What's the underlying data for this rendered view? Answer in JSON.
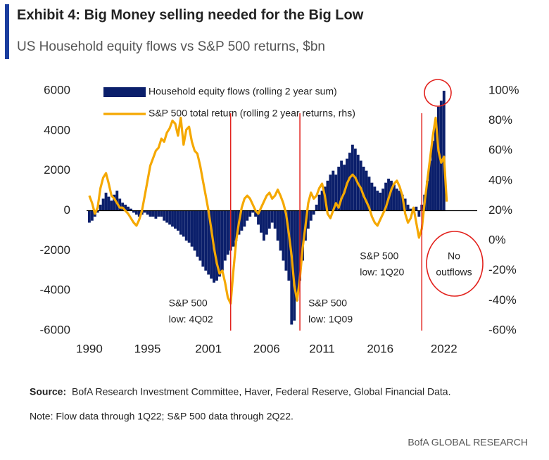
{
  "chart_data": {
    "type": "bar",
    "title": "Exhibit 4: Big Money selling needed for the Big Low",
    "subtitle": "US Household equity flows vs S&P 500 returns, $bn",
    "x": [
      1990,
      1990.25,
      1990.5,
      1990.75,
      1991,
      1991.25,
      1991.5,
      1991.75,
      1992,
      1992.25,
      1992.5,
      1992.75,
      1993,
      1993.25,
      1993.5,
      1993.75,
      1994,
      1994.25,
      1994.5,
      1994.75,
      1995,
      1995.25,
      1995.5,
      1995.75,
      1996,
      1996.25,
      1996.5,
      1996.75,
      1997,
      1997.25,
      1997.5,
      1997.75,
      1998,
      1998.25,
      1998.5,
      1998.75,
      1999,
      1999.25,
      1999.5,
      1999.75,
      2000,
      2000.25,
      2000.5,
      2000.75,
      2001,
      2001.25,
      2001.5,
      2001.75,
      2002,
      2002.25,
      2002.5,
      2002.75,
      2003,
      2003.25,
      2003.5,
      2003.75,
      2004,
      2004.25,
      2004.5,
      2004.75,
      2005,
      2005.25,
      2005.5,
      2005.75,
      2006,
      2006.25,
      2006.5,
      2006.75,
      2007,
      2007.25,
      2007.5,
      2007.75,
      2008,
      2008.25,
      2008.5,
      2008.75,
      2009,
      2009.25,
      2009.5,
      2009.75,
      2010,
      2010.25,
      2010.5,
      2010.75,
      2011,
      2011.25,
      2011.5,
      2011.75,
      2012,
      2012.25,
      2012.5,
      2012.75,
      2013,
      2013.25,
      2013.5,
      2013.75,
      2014,
      2014.25,
      2014.5,
      2014.75,
      2015,
      2015.25,
      2015.5,
      2015.75,
      2016,
      2016.25,
      2016.5,
      2016.75,
      2017,
      2017.25,
      2017.5,
      2017.75,
      2018,
      2018.25,
      2018.5,
      2018.75,
      2019,
      2019.25,
      2019.5,
      2019.75,
      2020,
      2020.25,
      2020.5,
      2020.75,
      2021,
      2021.25,
      2021.5,
      2021.75,
      2022,
      2022.25
    ],
    "series": [
      {
        "name": "Household equity flows (rolling 2 year sum)",
        "type": "bar",
        "color": "#0b1f6b",
        "values": [
          -600,
          -500,
          -300,
          -100,
          300,
          600,
          900,
          700,
          500,
          800,
          1000,
          600,
          400,
          300,
          200,
          100,
          -100,
          -200,
          -300,
          -200,
          -100,
          -200,
          -300,
          -300,
          -400,
          -300,
          -300,
          -500,
          -600,
          -700,
          -800,
          -900,
          -1000,
          -1200,
          -1300,
          -1500,
          -1600,
          -1800,
          -2000,
          -2300,
          -2500,
          -2800,
          -3000,
          -3200,
          -3400,
          -3600,
          -3500,
          -3300,
          -3000,
          -2500,
          -2200,
          -2000,
          -1800,
          -1500,
          -1200,
          -1000,
          -800,
          -500,
          -300,
          -100,
          -300,
          -700,
          -1100,
          -1500,
          -1200,
          -900,
          -600,
          -900,
          -1500,
          -2000,
          -2500,
          -3000,
          -3500,
          -5700,
          -5500,
          -4500,
          -3500,
          -2500,
          -1500,
          -900,
          -500,
          -200,
          300,
          800,
          1000,
          1200,
          1500,
          1800,
          2000,
          1800,
          2200,
          2500,
          2300,
          2600,
          2900,
          3300,
          3100,
          2800,
          2500,
          2200,
          2000,
          1700,
          1400,
          1200,
          1000,
          900,
          1100,
          1400,
          1600,
          1500,
          1300,
          1100,
          1000,
          800,
          600,
          300,
          100,
          -100,
          200,
          -300,
          300,
          800,
          1500,
          2500,
          3500,
          4500,
          5200,
          5500,
          6000,
          null
        ]
      },
      {
        "name": "S&P 500 total return (rolling 2 year returns, rhs)",
        "type": "line",
        "axis": "y2",
        "color": "#f5a800",
        "values": [
          30,
          25,
          18,
          22,
          35,
          42,
          45,
          38,
          30,
          28,
          25,
          22,
          22,
          20,
          18,
          15,
          12,
          10,
          14,
          20,
          30,
          40,
          50,
          55,
          60,
          62,
          68,
          66,
          72,
          75,
          80,
          78,
          70,
          82,
          64,
          74,
          76,
          66,
          60,
          58,
          50,
          40,
          30,
          20,
          8,
          -5,
          -15,
          -22,
          -20,
          -28,
          -38,
          -42,
          -20,
          0,
          12,
          22,
          28,
          30,
          28,
          24,
          20,
          18,
          22,
          26,
          30,
          32,
          28,
          30,
          34,
          30,
          25,
          18,
          5,
          -10,
          -30,
          -40,
          -25,
          -5,
          10,
          25,
          32,
          28,
          30,
          35,
          38,
          30,
          18,
          15,
          20,
          25,
          22,
          28,
          32,
          38,
          42,
          44,
          42,
          38,
          35,
          30,
          26,
          22,
          16,
          12,
          10,
          14,
          18,
          22,
          28,
          34,
          38,
          40,
          36,
          30,
          18,
          12,
          15,
          22,
          12,
          2,
          8,
          25,
          40,
          55,
          70,
          82,
          60,
          52,
          56,
          26
        ]
      }
    ],
    "xlim": [
      1989.75,
      2025
    ],
    "xticks": [
      1990,
      {
        "value": 1995.25,
        "label": "1995"
      },
      {
        "value": 2000.75,
        "label": "2001"
      },
      2006,
      2011,
      {
        "value": 2016.25,
        "label": "2016"
      },
      2022
    ],
    "ylim": [
      -6000,
      6000
    ],
    "yticks": [
      -6000,
      -4000,
      -2000,
      0,
      2000,
      4000,
      6000
    ],
    "y2lim": [
      -60,
      100
    ],
    "y2ticks": [
      {
        "value": -60,
        "label": "-60%"
      },
      {
        "value": -40,
        "label": "-40%"
      },
      {
        "value": -20,
        "label": "-20%"
      },
      {
        "value": 0,
        "label": "0%"
      },
      {
        "value": 20,
        "label": "20%"
      },
      {
        "value": 40,
        "label": "40%"
      },
      {
        "value": 60,
        "label": "60%"
      },
      {
        "value": 80,
        "label": "80%"
      },
      {
        "value": 100,
        "label": "100%"
      }
    ],
    "grid": false,
    "legend": "top-left",
    "annotation_color": "#e2211c",
    "annotations": [
      {
        "x": 2002.75,
        "lines": [
          "S&P 500",
          "low: 4Q02"
        ]
      },
      {
        "x": 2009,
        "lines": [
          "S&P 500",
          "low: 1Q09"
        ]
      },
      {
        "x": 2020,
        "lines": [
          "S&P 500",
          "low: 1Q20"
        ]
      }
    ],
    "callout": [
      "No",
      "outflows"
    ],
    "source_label": "Source:",
    "source_text": "BofA Research Investment Committee, Haver, Federal Reserve, Global Financial Data.",
    "note": "Note: Flow data through 1Q22; S&P 500 data through 2Q22.",
    "brand": "BofA GLOBAL RESEARCH"
  }
}
